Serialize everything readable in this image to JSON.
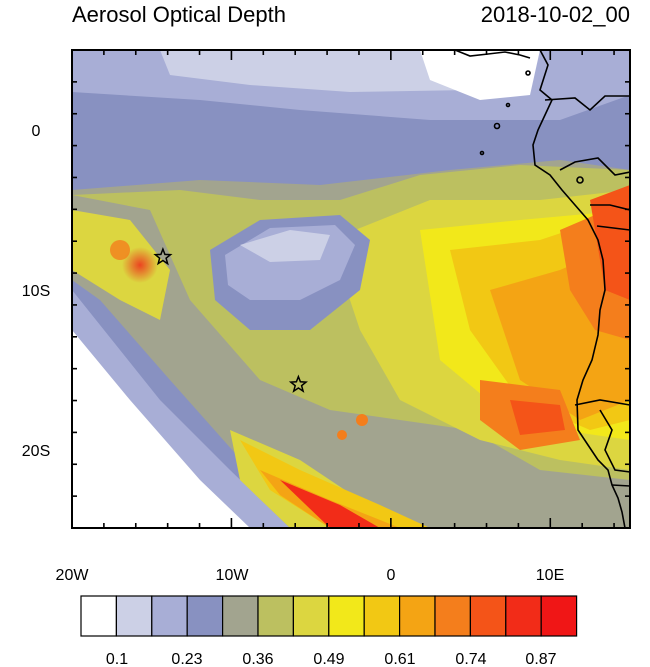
{
  "title_left": "Aerosol Optical Depth",
  "title_right": "2018-10-02_00",
  "x_tick_labels": [
    "20W",
    "10W",
    "0",
    "10E"
  ],
  "y_tick_labels": [
    "0",
    "10S",
    "20S"
  ],
  "colorbar": {
    "labels": [
      "0.1",
      "0.23",
      "0.36",
      "0.49",
      "0.61",
      "0.74",
      "0.87"
    ],
    "colors": [
      "#ffffff",
      "#ccd0e6",
      "#a8aed6",
      "#8891c1",
      "#a2a48f",
      "#bcc060",
      "#dcd640",
      "#f2e81a",
      "#f2c814",
      "#f4a414",
      "#f47e1c",
      "#f45418",
      "#f22c18",
      "#f01616"
    ]
  },
  "extent": {
    "lon_min": -20,
    "lon_max": 15,
    "lat_min": -25,
    "lat_max": 5
  },
  "stars": [
    {
      "lon": -14.3,
      "lat": -8.0
    },
    {
      "lon": -5.8,
      "lat": -16.0
    }
  ]
}
